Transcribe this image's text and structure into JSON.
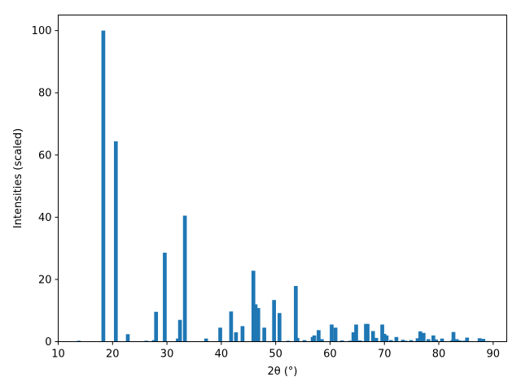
{
  "chart_data": {
    "type": "bar",
    "title": "",
    "xlabel": "2θ (°)",
    "ylabel": "Intensities (scaled)",
    "xlim": [
      10,
      92.5
    ],
    "ylim": [
      0,
      105
    ],
    "xticks": [
      10,
      20,
      30,
      40,
      50,
      60,
      70,
      80,
      90
    ],
    "yticks": [
      0,
      20,
      40,
      60,
      80,
      100
    ],
    "grid": false,
    "legend": "none",
    "bar_width": 0.7,
    "color": "#1f77b4",
    "series": [
      {
        "x": [
          13.8,
          18.3,
          20.6,
          22.8,
          26.2,
          27.6,
          28.0,
          29.6,
          32.0,
          32.4,
          33.3,
          37.2,
          39.8,
          41.8,
          42.7,
          43.9,
          45.9,
          46.3,
          46.8,
          47.9,
          49.7,
          50.7,
          52.3,
          53.7,
          54.0,
          55.3,
          56.8,
          57.1,
          57.9,
          58.5,
          60.3,
          61.0,
          62.2,
          63.7,
          64.3,
          64.8,
          65.5,
          66.6,
          66.9,
          67.9,
          68.5,
          69.6,
          70.0,
          70.4,
          71.2,
          72.2,
          73.4,
          73.9,
          74.9,
          76.1,
          76.6,
          77.2,
          78.1,
          79.0,
          79.5,
          80.6,
          82.5,
          82.7,
          83.3,
          83.8,
          84.6,
          85.2,
          87.5,
          88.2,
          89.0
        ],
        "values": [
          0.3,
          100,
          64.4,
          2.4,
          0.3,
          0.5,
          9.6,
          28.6,
          1.0,
          7.0,
          40.5,
          1.0,
          4.5,
          9.7,
          3.0,
          5.0,
          22.8,
          12.0,
          10.8,
          4.5,
          13.4,
          9.2,
          0.3,
          17.9,
          1.2,
          0.5,
          1.5,
          2.0,
          3.7,
          0.8,
          5.5,
          4.5,
          0.4,
          0.3,
          3.0,
          5.5,
          0.4,
          5.7,
          5.7,
          3.4,
          1.2,
          5.5,
          2.5,
          2.0,
          0.5,
          1.5,
          0.6,
          0.3,
          0.5,
          1.1,
          3.3,
          2.8,
          0.8,
          2.0,
          0.7,
          1.0,
          0.5,
          3.1,
          0.8,
          0.4,
          0.3,
          1.3,
          1.1,
          0.9,
          0.2
        ]
      }
    ]
  }
}
